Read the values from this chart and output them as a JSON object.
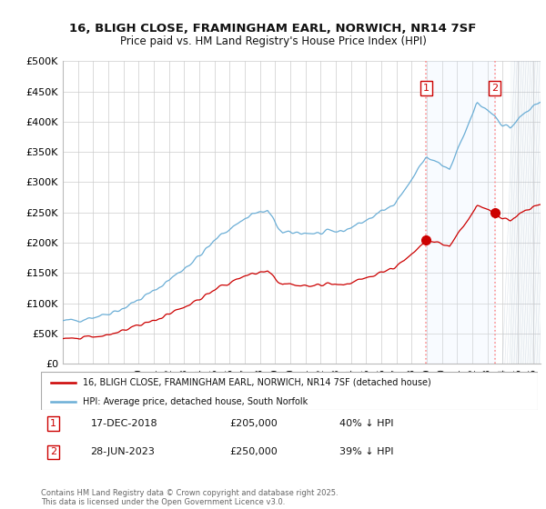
{
  "title_line1": "16, BLIGH CLOSE, FRAMINGHAM EARL, NORWICH, NR14 7SF",
  "title_line2": "Price paid vs. HM Land Registry's House Price Index (HPI)",
  "ylabel_ticks": [
    "£0",
    "£50K",
    "£100K",
    "£150K",
    "£200K",
    "£250K",
    "£300K",
    "£350K",
    "£400K",
    "£450K",
    "£500K"
  ],
  "ytick_values": [
    0,
    50000,
    100000,
    150000,
    200000,
    250000,
    300000,
    350000,
    400000,
    450000,
    500000
  ],
  "xlim_start": 1995.0,
  "xlim_end": 2026.5,
  "ylim_min": 0,
  "ylim_max": 500000,
  "hpi_color": "#6baed6",
  "price_color": "#cc0000",
  "sale1_date": 2018.96,
  "sale1_price": 205000,
  "sale1_label": "17-DEC-2018",
  "sale1_pct": "40% ↓ HPI",
  "sale2_date": 2023.49,
  "sale2_price": 250000,
  "sale2_label": "28-JUN-2023",
  "sale2_pct": "39% ↓ HPI",
  "legend_red_label": "16, BLIGH CLOSE, FRAMINGHAM EARL, NORWICH, NR14 7SF (detached house)",
  "legend_blue_label": "HPI: Average price, detached house, South Norfolk",
  "footer_text": "Contains HM Land Registry data © Crown copyright and database right 2025.\nThis data is licensed under the Open Government Licence v3.0.",
  "background_color": "#ffffff",
  "grid_color": "#cccccc",
  "hatch_color": "#ddeeff",
  "shade_color": "#ddeeff"
}
